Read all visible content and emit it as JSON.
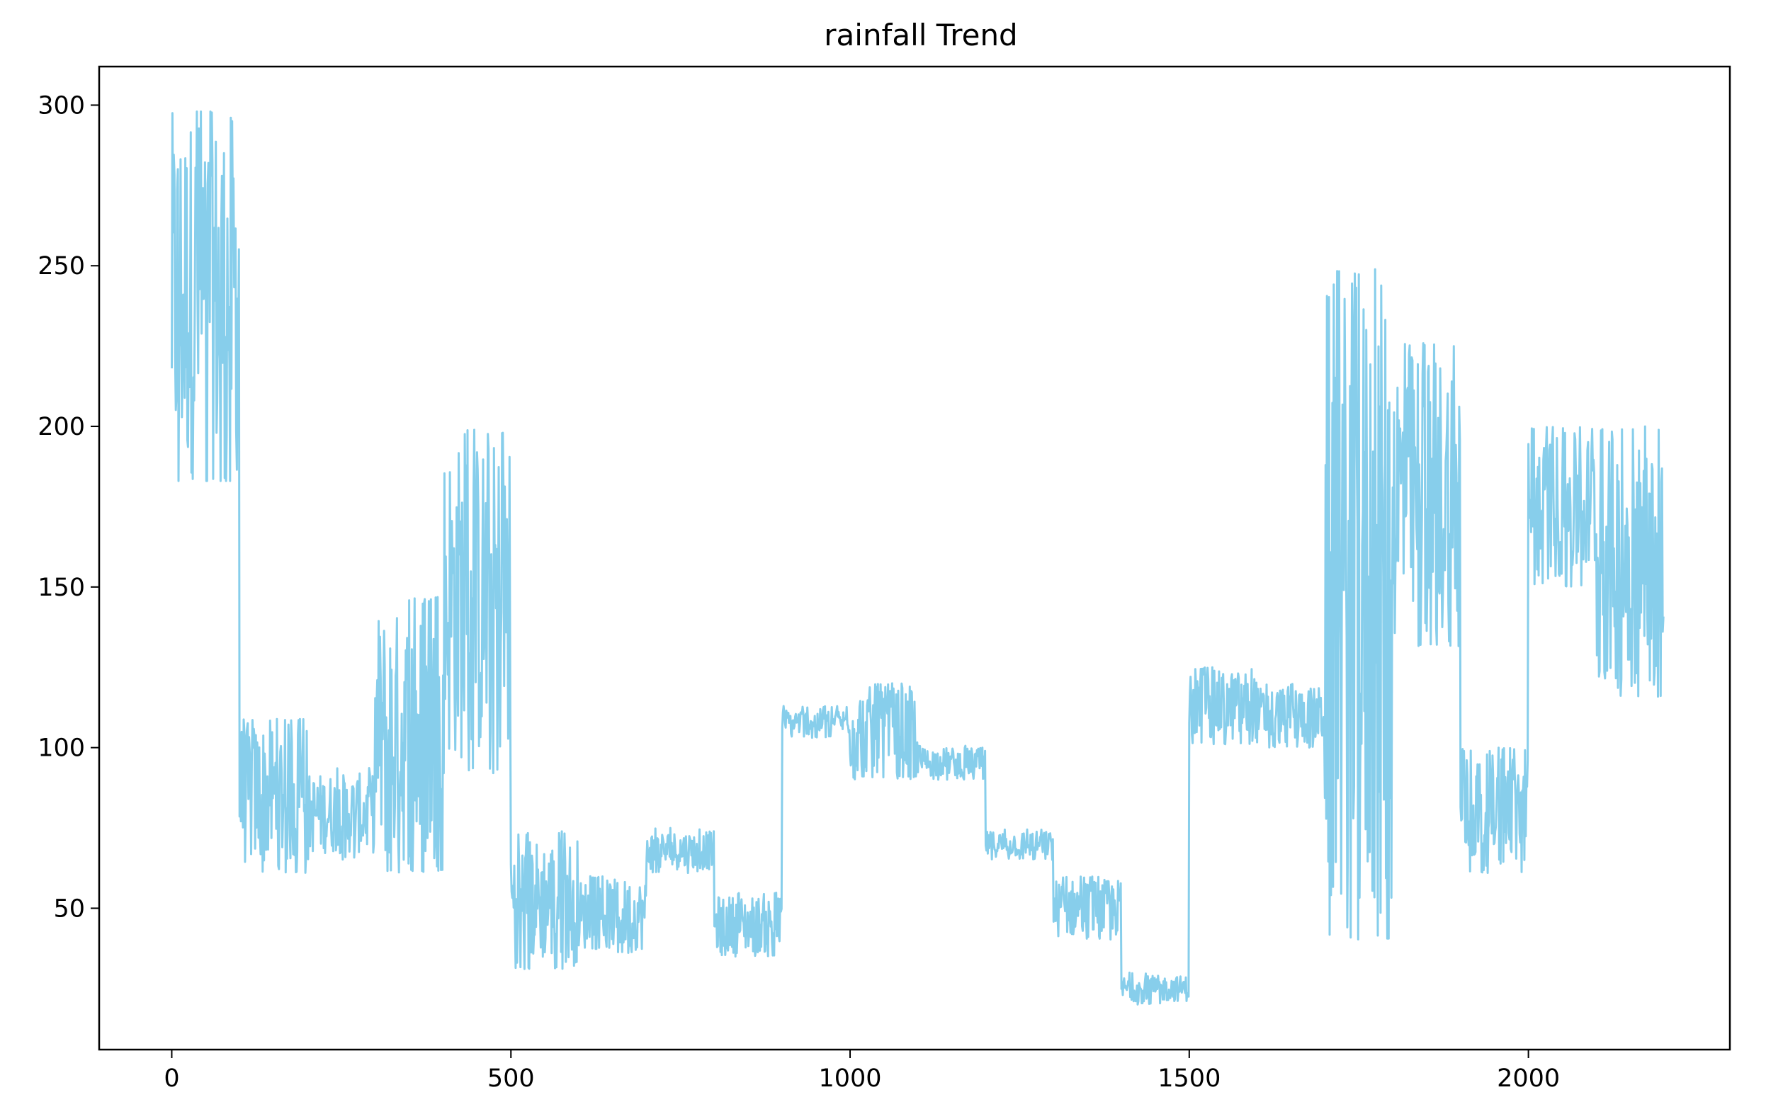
{
  "chart_data": {
    "type": "line",
    "title": "rainfall Trend",
    "xlabel": "",
    "ylabel": "",
    "xlim": [
      -107,
      2297
    ],
    "ylim": [
      6,
      312
    ],
    "xticks": [
      0,
      500,
      1000,
      1500,
      2000
    ],
    "yticks": [
      50,
      100,
      150,
      200,
      250,
      300
    ],
    "grid": false,
    "legend": "none",
    "series": [
      {
        "color": "#87CEEB",
        "segments": [
          {
            "x_start": 0,
            "x_end": 100,
            "low": 183,
            "high": 298,
            "min_spike": 183,
            "max_spike": 298
          },
          {
            "x_start": 100,
            "x_end": 200,
            "low": 63,
            "high": 108,
            "min_spike": 61,
            "max_spike": 109
          },
          {
            "x_start": 200,
            "x_end": 300,
            "low": 67,
            "high": 92,
            "min_spike": 65,
            "max_spike": 94
          },
          {
            "x_start": 300,
            "x_end": 400,
            "low": 63,
            "high": 143,
            "min_spike": 61,
            "max_spike": 147
          },
          {
            "x_start": 400,
            "x_end": 500,
            "low": 95,
            "high": 196,
            "min_spike": 92,
            "max_spike": 199
          },
          {
            "x_start": 500,
            "x_end": 600,
            "low": 33,
            "high": 72,
            "min_spike": 31,
            "max_spike": 74
          },
          {
            "x_start": 600,
            "x_end": 700,
            "low": 37,
            "high": 59,
            "min_spike": 36,
            "max_spike": 60
          },
          {
            "x_start": 700,
            "x_end": 800,
            "low": 62,
            "high": 74,
            "min_spike": 61,
            "max_spike": 75
          },
          {
            "x_start": 800,
            "x_end": 900,
            "low": 36,
            "high": 54,
            "min_spike": 35,
            "max_spike": 55
          },
          {
            "x_start": 900,
            "x_end": 1000,
            "low": 104,
            "high": 112,
            "min_spike": 103,
            "max_spike": 113
          },
          {
            "x_start": 1000,
            "x_end": 1100,
            "low": 92,
            "high": 119,
            "min_spike": 90,
            "max_spike": 120
          },
          {
            "x_start": 1100,
            "x_end": 1200,
            "low": 91,
            "high": 100,
            "min_spike": 90,
            "max_spike": 101
          },
          {
            "x_start": 1200,
            "x_end": 1300,
            "low": 66,
            "high": 74,
            "min_spike": 65,
            "max_spike": 75
          },
          {
            "x_start": 1300,
            "x_end": 1400,
            "low": 41,
            "high": 59,
            "min_spike": 40,
            "max_spike": 60
          },
          {
            "x_start": 1400,
            "x_end": 1500,
            "low": 21,
            "high": 29,
            "min_spike": 20,
            "max_spike": 30
          },
          {
            "x_start": 1500,
            "x_end": 1600,
            "low": 102,
            "high": 124,
            "min_spike": 101,
            "max_spike": 125
          },
          {
            "x_start": 1600,
            "x_end": 1700,
            "low": 101,
            "high": 119,
            "min_spike": 100,
            "max_spike": 120
          },
          {
            "x_start": 1700,
            "x_end": 1800,
            "low": 43,
            "high": 245,
            "min_spike": 40,
            "max_spike": 249
          },
          {
            "x_start": 1800,
            "x_end": 1900,
            "low": 133,
            "high": 224,
            "min_spike": 131,
            "max_spike": 226
          },
          {
            "x_start": 1900,
            "x_end": 2000,
            "low": 63,
            "high": 98,
            "min_spike": 61,
            "max_spike": 100
          },
          {
            "x_start": 2000,
            "x_end": 2100,
            "low": 152,
            "high": 198,
            "min_spike": 150,
            "max_spike": 200
          },
          {
            "x_start": 2100,
            "x_end": 2200,
            "low": 118,
            "high": 197,
            "min_spike": 115,
            "max_spike": 200
          }
        ]
      }
    ]
  }
}
